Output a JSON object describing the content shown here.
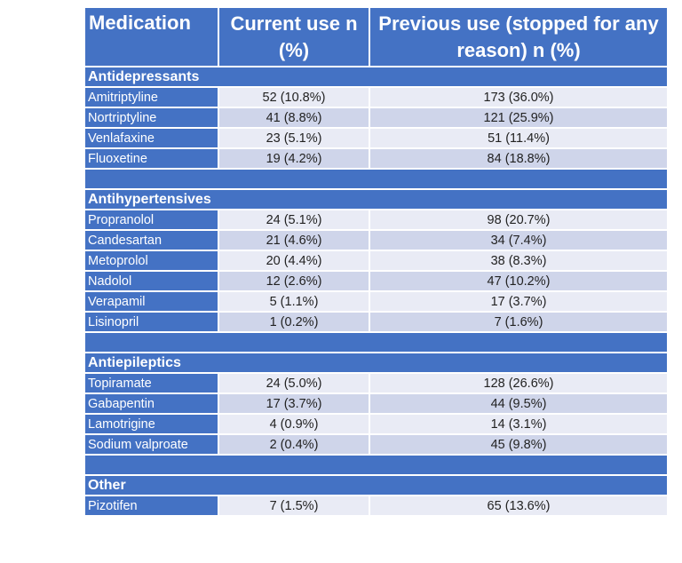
{
  "headers": {
    "medication": "Medication",
    "current": "Current use n (%)",
    "previous": "Previous use (stopped for any reason) n (%)"
  },
  "groups": [
    {
      "title": "Antidepressants",
      "rows": [
        {
          "name": "Amitriptyline",
          "current": "52 (10.8%)",
          "previous": "173 (36.0%)"
        },
        {
          "name": "Nortriptyline",
          "current": "41 (8.8%)",
          "previous": "121 (25.9%)"
        },
        {
          "name": "Venlafaxine",
          "current": "23 (5.1%)",
          "previous": "51 (11.4%)"
        },
        {
          "name": "Fluoxetine",
          "current": "19 (4.2%)",
          "previous": "84 (18.8%)"
        }
      ]
    },
    {
      "title": "Antihypertensives",
      "rows": [
        {
          "name": "Propranolol",
          "current": "24 (5.1%)",
          "previous": "98 (20.7%)"
        },
        {
          "name": "Candesartan",
          "current": "21 (4.6%)",
          "previous": "34 (7.4%)"
        },
        {
          "name": "Metoprolol",
          "current": "20 (4.4%)",
          "previous": "38 (8.3%)"
        },
        {
          "name": "Nadolol",
          "current": "12 (2.6%)",
          "previous": "47 (10.2%)"
        },
        {
          "name": "Verapamil",
          "current": "5 (1.1%)",
          "previous": "17 (3.7%)"
        },
        {
          "name": "Lisinopril",
          "current": "1 (0.2%)",
          "previous": "7 (1.6%)"
        }
      ]
    },
    {
      "title": "Antiepileptics",
      "rows": [
        {
          "name": "Topiramate",
          "current": "24 (5.0%)",
          "previous": "128 (26.6%)"
        },
        {
          "name": "Gabapentin",
          "current": "17 (3.7%)",
          "previous": "44 (9.5%)"
        },
        {
          "name": "Lamotrigine",
          "current": "4 (0.9%)",
          "previous": "14 (3.1%)"
        },
        {
          "name": "Sodium valproate",
          "current": "2 (0.4%)",
          "previous": "45 (9.8%)"
        }
      ]
    },
    {
      "title": "Other",
      "rows": [
        {
          "name": "Pizotifen",
          "current": "7 (1.5%)",
          "previous": "65 (13.6%)"
        }
      ]
    }
  ],
  "colors": {
    "header_blue": "#4472c4",
    "row_light": "#e9ebf5",
    "row_dark": "#cfd5ea"
  }
}
